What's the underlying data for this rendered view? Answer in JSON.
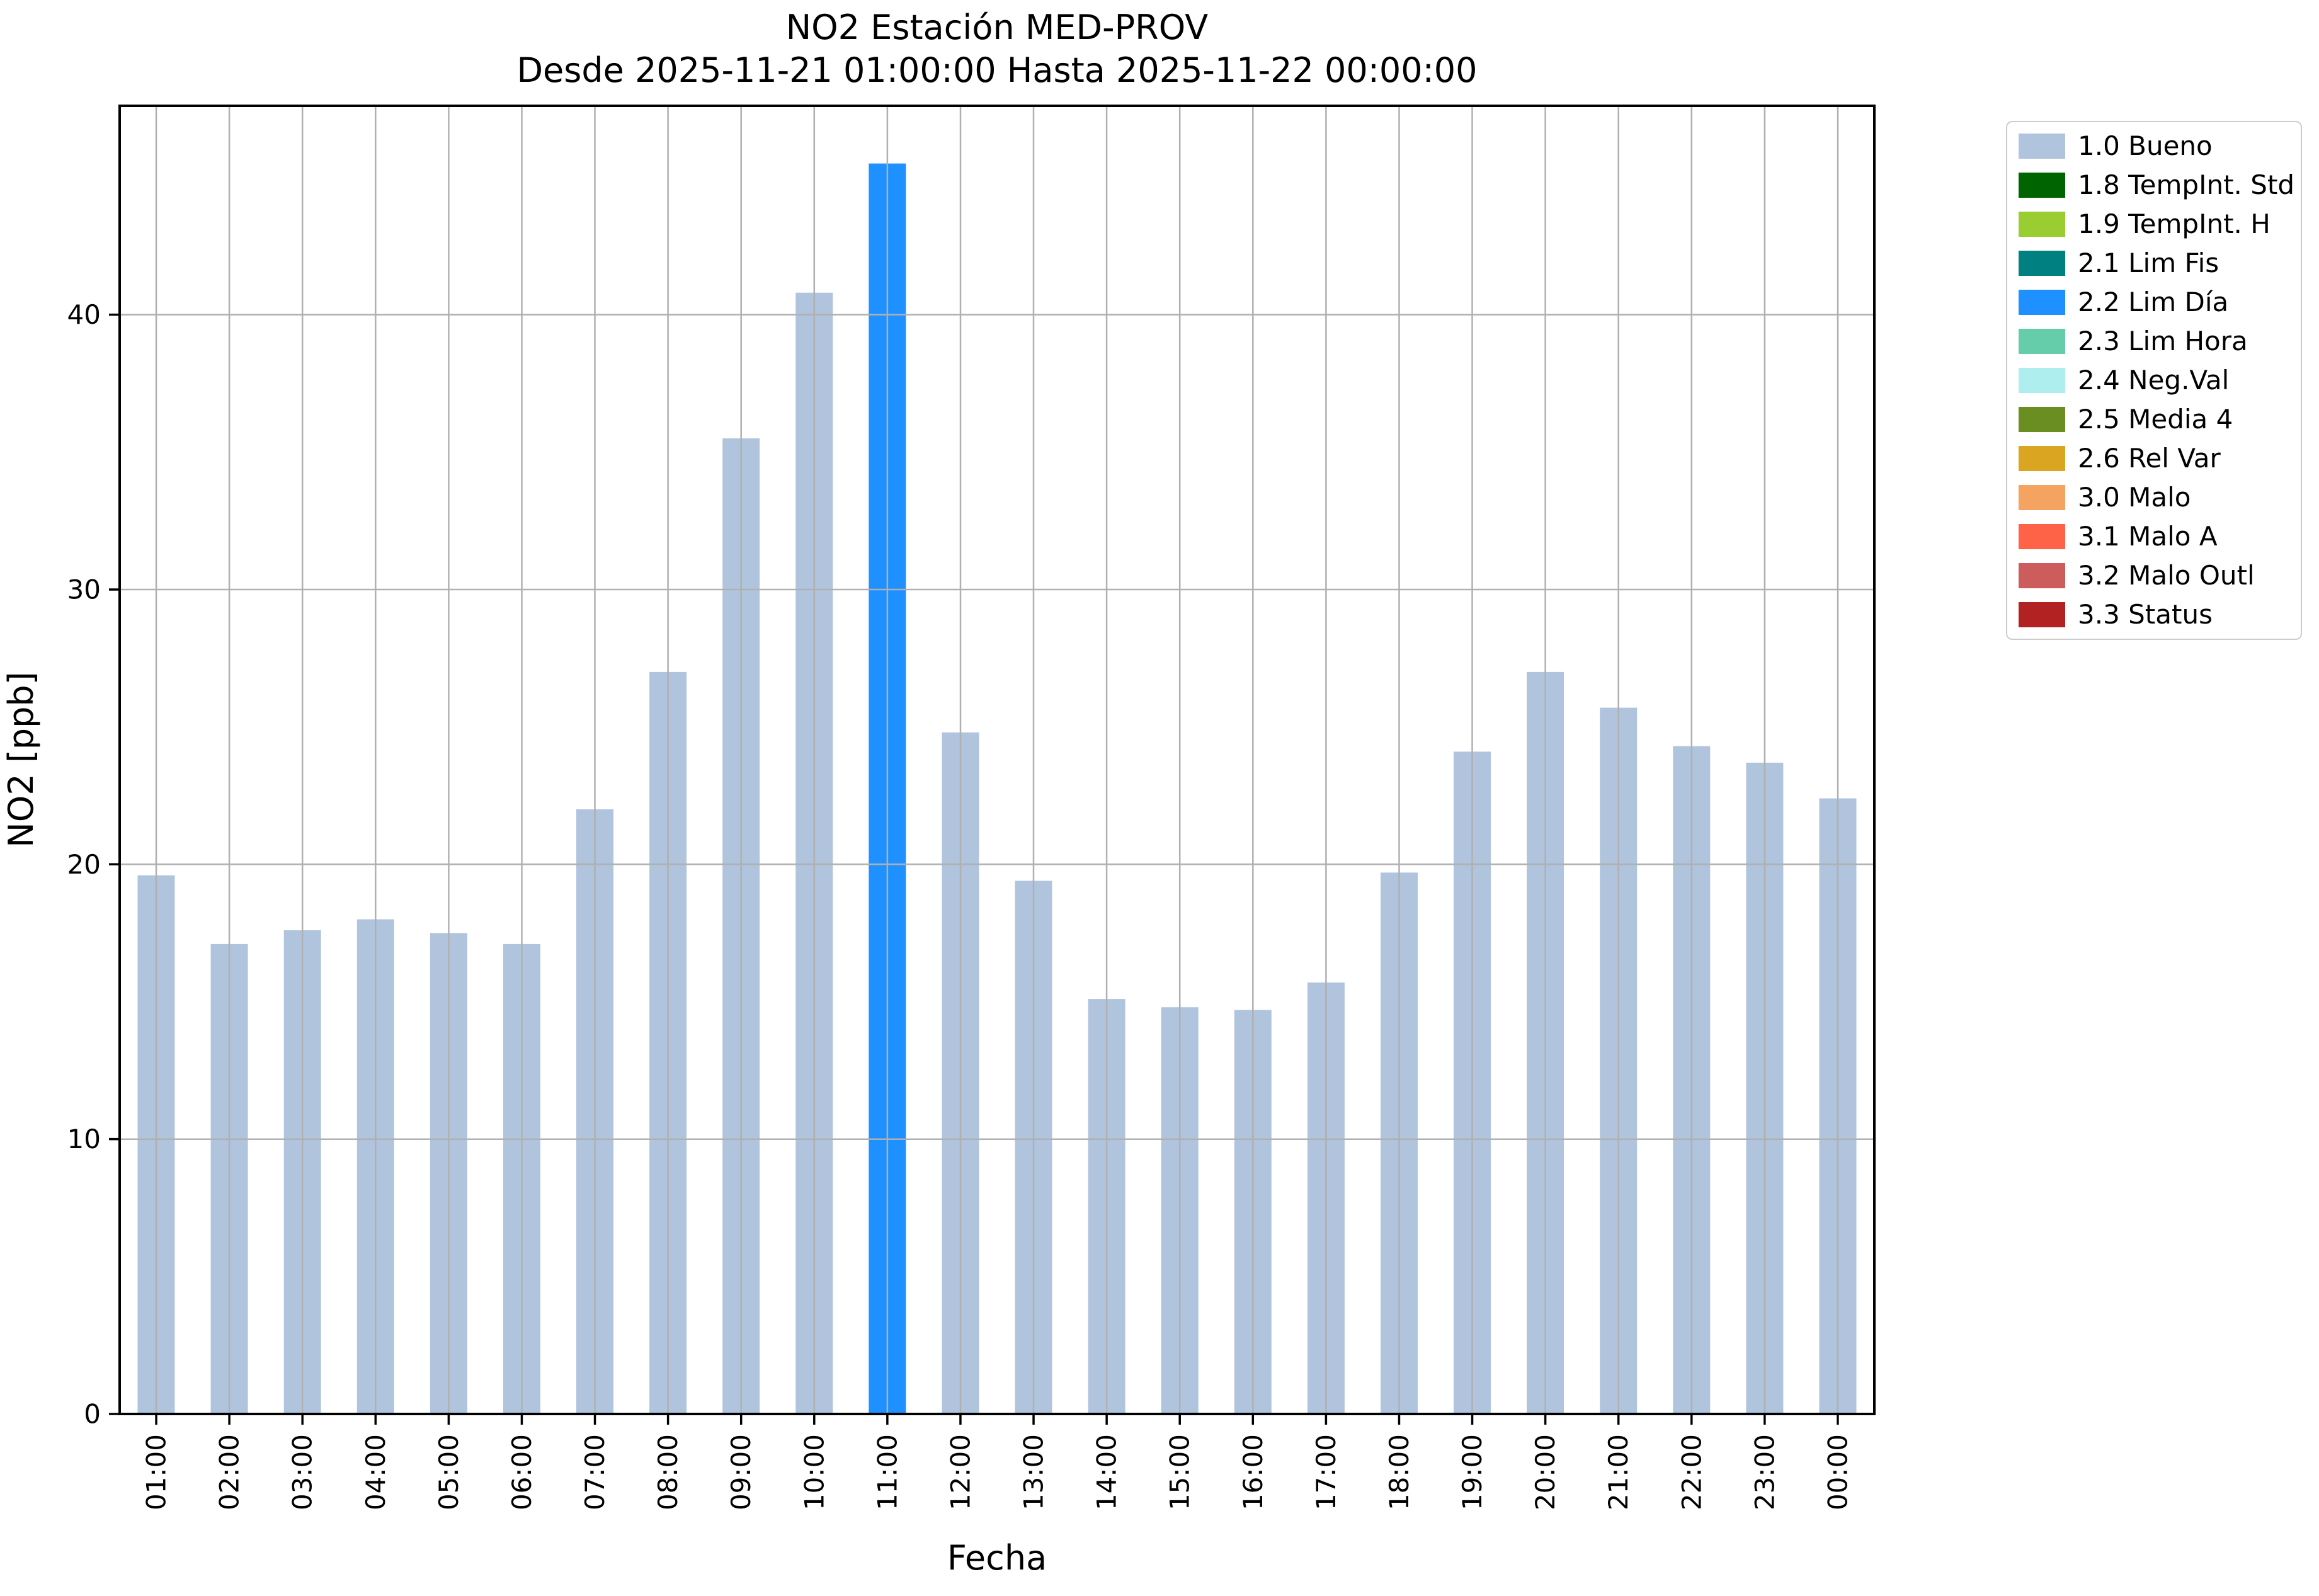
{
  "chart_data": {
    "type": "bar",
    "title": "NO2 Estación MED-PROV",
    "subtitle": "Desde 2025-11-21 01:00:00 Hasta 2025-11-22 00:00:00",
    "xlabel": "Fecha",
    "ylabel": "NO2 [ppb]",
    "categories": [
      "01:00",
      "02:00",
      "03:00",
      "04:00",
      "05:00",
      "06:00",
      "07:00",
      "08:00",
      "09:00",
      "10:00",
      "11:00",
      "12:00",
      "13:00",
      "14:00",
      "15:00",
      "16:00",
      "17:00",
      "18:00",
      "19:00",
      "20:00",
      "21:00",
      "22:00",
      "23:00",
      "00:00"
    ],
    "values": [
      19.6,
      17.1,
      17.6,
      18.0,
      17.5,
      17.1,
      22.0,
      27.0,
      35.5,
      40.8,
      45.5,
      24.8,
      19.4,
      15.1,
      14.8,
      14.7,
      15.7,
      19.7,
      24.1,
      27.0,
      25.7,
      24.3,
      23.7,
      22.4
    ],
    "statuses": [
      "1.0 Bueno",
      "1.0 Bueno",
      "1.0 Bueno",
      "1.0 Bueno",
      "1.0 Bueno",
      "1.0 Bueno",
      "1.0 Bueno",
      "1.0 Bueno",
      "1.0 Bueno",
      "1.0 Bueno",
      "2.2 Lim Día",
      "1.0 Bueno",
      "1.0 Bueno",
      "1.0 Bueno",
      "1.0 Bueno",
      "1.0 Bueno",
      "1.0 Bueno",
      "1.0 Bueno",
      "1.0 Bueno",
      "1.0 Bueno",
      "1.0 Bueno",
      "1.0 Bueno",
      "1.0 Bueno",
      "1.0 Bueno"
    ],
    "status_colors": {
      "1.0 Bueno": "#b0c4de",
      "1.8 TempInt. Std": "#006400",
      "1.9 TempInt. H": "#9acd32",
      "2.1 Lim Fis": "#008080",
      "2.2 Lim Día": "#1e90ff",
      "2.3 Lim Hora": "#66cdaa",
      "2.4 Neg.Val": "#afeeee",
      "2.5 Media 4": "#6b8e23",
      "2.6 Rel Var": "#daa520",
      "3.0 Malo": "#f4a460",
      "3.1 Malo A": "#ff6347",
      "3.2 Malo Outl": "#cd5c5c",
      "3.3 Status": "#b22222"
    },
    "yticks": [
      0,
      10,
      20,
      30,
      40
    ],
    "ylim": [
      0,
      47.6
    ],
    "grid": true,
    "grid_color": "#b0b0b0",
    "legend_position": "upper right, outside axes",
    "legend": [
      {
        "label": "1.0 Bueno",
        "color": "#b0c4de"
      },
      {
        "label": "1.8 TempInt. Std",
        "color": "#006400"
      },
      {
        "label": "1.9 TempInt. H",
        "color": "#9acd32"
      },
      {
        "label": "2.1 Lim Fis",
        "color": "#008080"
      },
      {
        "label": "2.2 Lim Día",
        "color": "#1e90ff"
      },
      {
        "label": "2.3 Lim Hora",
        "color": "#66cdaa"
      },
      {
        "label": "2.4 Neg.Val",
        "color": "#afeeee"
      },
      {
        "label": "2.5 Media 4",
        "color": "#6b8e23"
      },
      {
        "label": "2.6 Rel Var",
        "color": "#daa520"
      },
      {
        "label": "3.0 Malo",
        "color": "#f4a460"
      },
      {
        "label": "3.1 Malo A",
        "color": "#ff6347"
      },
      {
        "label": "3.2 Malo Outl",
        "color": "#cd5c5c"
      },
      {
        "label": "3.3 Status",
        "color": "#b22222"
      }
    ]
  }
}
